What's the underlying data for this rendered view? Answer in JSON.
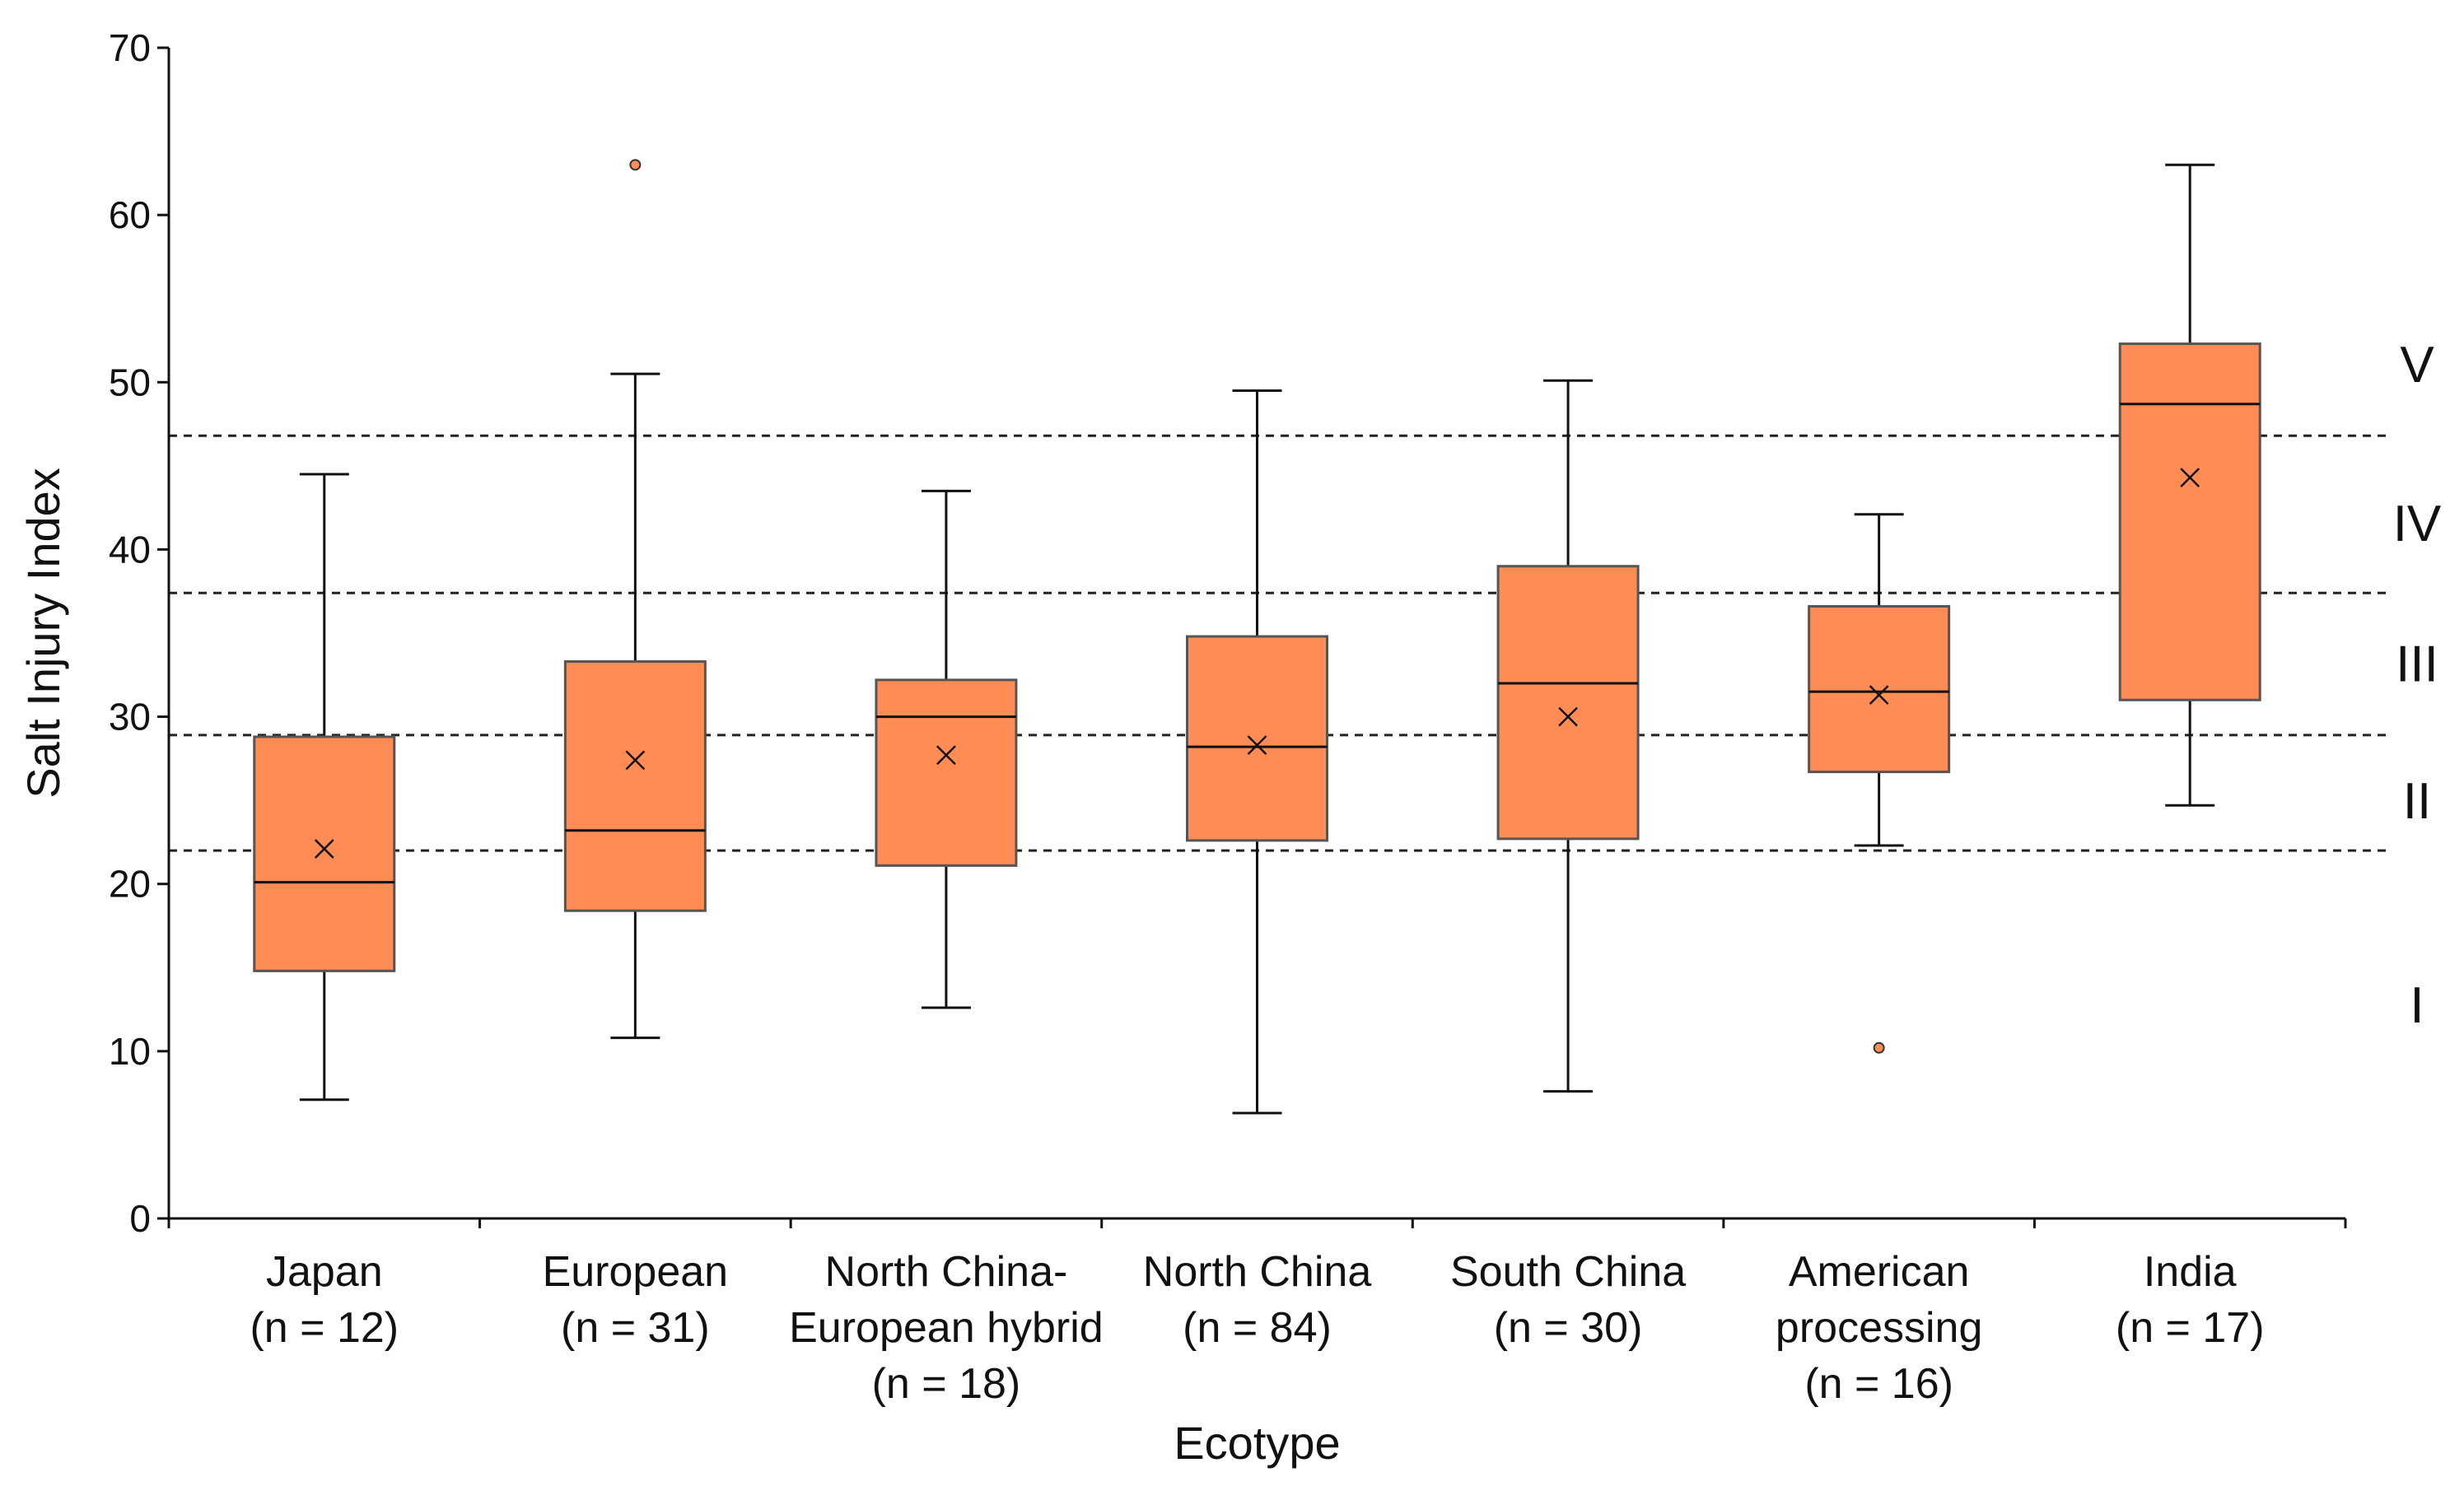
{
  "chart_data": {
    "type": "box",
    "xlabel": "Ecotype",
    "ylabel": "Salt Injury Index",
    "ylim": [
      0,
      70
    ],
    "yticks": [
      "0",
      "10",
      "20",
      "30",
      "40",
      "50",
      "60",
      "70"
    ],
    "grid": false,
    "legend": "none",
    "box_color": "#FF8C55",
    "categories": [
      {
        "lines": [
          "Japan",
          "(n = 12)"
        ]
      },
      {
        "lines": [
          "European",
          "(n = 31)"
        ]
      },
      {
        "lines": [
          "North China-",
          "European hybrid",
          "(n = 18)"
        ]
      },
      {
        "lines": [
          "North China",
          "(n = 84)"
        ]
      },
      {
        "lines": [
          "South China",
          "(n = 30)"
        ]
      },
      {
        "lines": [
          "American",
          "processing",
          "(n = 16)"
        ]
      },
      {
        "lines": [
          "India",
          "(n = 17)"
        ]
      }
    ],
    "boxes": [
      {
        "whisker_low": 7.1,
        "q1": 14.8,
        "median": 20.1,
        "q3": 28.8,
        "whisker_high": 44.5,
        "mean": 22.1,
        "outliers": []
      },
      {
        "whisker_low": 10.8,
        "q1": 18.4,
        "median": 23.2,
        "q3": 33.3,
        "whisker_high": 50.5,
        "mean": 27.4,
        "outliers": [
          63.0
        ]
      },
      {
        "whisker_low": 12.6,
        "q1": 21.1,
        "median": 30.0,
        "q3": 32.2,
        "whisker_high": 43.5,
        "mean": 27.7,
        "outliers": []
      },
      {
        "whisker_low": 6.3,
        "q1": 22.6,
        "median": 28.2,
        "q3": 34.8,
        "whisker_high": 49.5,
        "mean": 28.3,
        "outliers": []
      },
      {
        "whisker_low": 7.6,
        "q1": 22.7,
        "median": 32.0,
        "q3": 39.0,
        "whisker_high": 50.1,
        "mean": 30.0,
        "outliers": []
      },
      {
        "whisker_low": 22.3,
        "q1": 26.7,
        "median": 31.5,
        "q3": 36.6,
        "whisker_high": 42.1,
        "mean": 31.3,
        "outliers": [
          10.2
        ]
      },
      {
        "whisker_low": 24.7,
        "q1": 31.0,
        "median": 48.7,
        "q3": 52.3,
        "whisker_high": 63.0,
        "mean": 44.3,
        "outliers": []
      }
    ],
    "thresholds": [
      22.0,
      28.9,
      37.4,
      46.8
    ],
    "zones": [
      {
        "label": "I",
        "y": 12.8
      },
      {
        "label": "II",
        "y": 25.0
      },
      {
        "label": "III",
        "y": 33.2
      },
      {
        "label": "IV",
        "y": 41.6
      },
      {
        "label": "V",
        "y": 51.1
      }
    ]
  }
}
